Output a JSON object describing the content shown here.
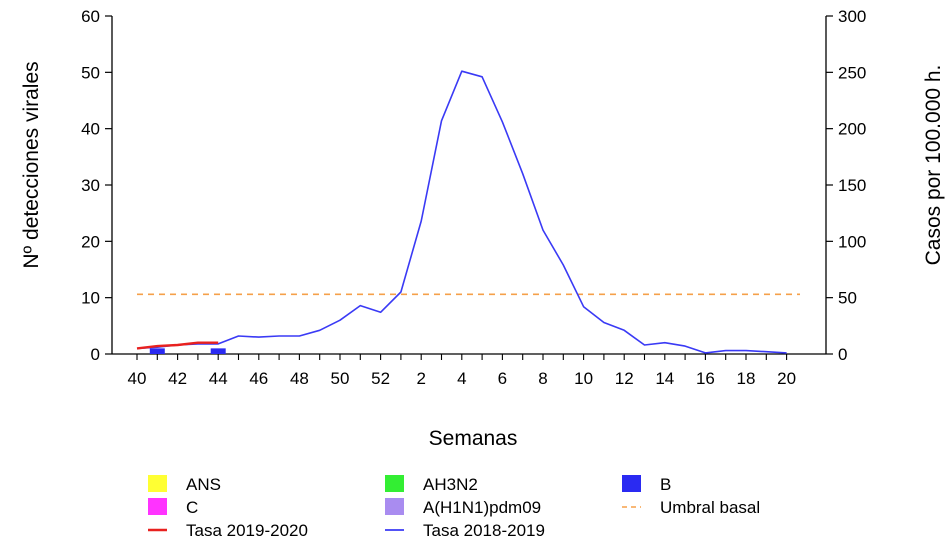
{
  "chart_data": {
    "type": "bar+line",
    "xlabel": "Semanas",
    "ylabel_left": "Nº detecciones virales",
    "ylabel_right": "Casos por 100.000 h.",
    "ylim_left": [
      0,
      60
    ],
    "ylim_right": [
      0,
      300
    ],
    "yticks_left": [
      0,
      10,
      20,
      30,
      40,
      50,
      60
    ],
    "yticks_right": [
      0,
      50,
      100,
      150,
      200,
      250,
      300
    ],
    "weeks": [
      40,
      41,
      42,
      43,
      44,
      45,
      46,
      47,
      48,
      49,
      50,
      51,
      52,
      1,
      2,
      3,
      4,
      5,
      6,
      7,
      8,
      9,
      10,
      11,
      12,
      13,
      14,
      15,
      16,
      17,
      18,
      19,
      20
    ],
    "xtick_labels": [
      "40",
      "42",
      "44",
      "46",
      "48",
      "50",
      "52",
      "2",
      "4",
      "6",
      "8",
      "10",
      "12",
      "14",
      "16",
      "18",
      "20"
    ],
    "bars": [
      {
        "name": "B",
        "color": "#2a2af2",
        "weeks": [
          41,
          44
        ],
        "values": [
          1,
          1
        ]
      }
    ],
    "series": [
      {
        "name": "Tasa 2018-2019",
        "axis": "right",
        "color": "#3a3af5",
        "values": [
          5,
          6,
          8,
          9,
          9,
          16,
          15,
          16,
          16,
          21,
          30,
          43,
          37,
          55,
          118,
          207,
          251,
          246,
          206,
          160,
          110,
          79,
          42,
          28,
          21,
          8,
          10,
          7,
          1,
          3,
          3,
          2,
          1
        ]
      },
      {
        "name": "Tasa 2019-2020",
        "axis": "right",
        "color": "#e8211f",
        "values": [
          5,
          7,
          8,
          10,
          10
        ]
      }
    ],
    "threshold": {
      "name": "Umbral basal",
      "axis": "right",
      "value": 53,
      "color": "#f5a04a"
    },
    "legend": [
      {
        "label": "ANS",
        "kind": "box",
        "color": "#ffff33"
      },
      {
        "label": "AH3N2",
        "kind": "box",
        "color": "#33ee33"
      },
      {
        "label": "B",
        "kind": "box",
        "color": "#2a2af2"
      },
      {
        "label": "C",
        "kind": "box",
        "color": "#ff33ff"
      },
      {
        "label": "A(H1N1)pdm09",
        "kind": "box",
        "color": "#a98cf0"
      },
      {
        "label": "Umbral basal",
        "kind": "dash",
        "color": "#f5a04a"
      },
      {
        "label": "Tasa 2019-2020",
        "kind": "line",
        "color": "#e8211f"
      },
      {
        "label": "Tasa 2018-2019",
        "kind": "line",
        "color": "#3a3af5"
      }
    ]
  }
}
